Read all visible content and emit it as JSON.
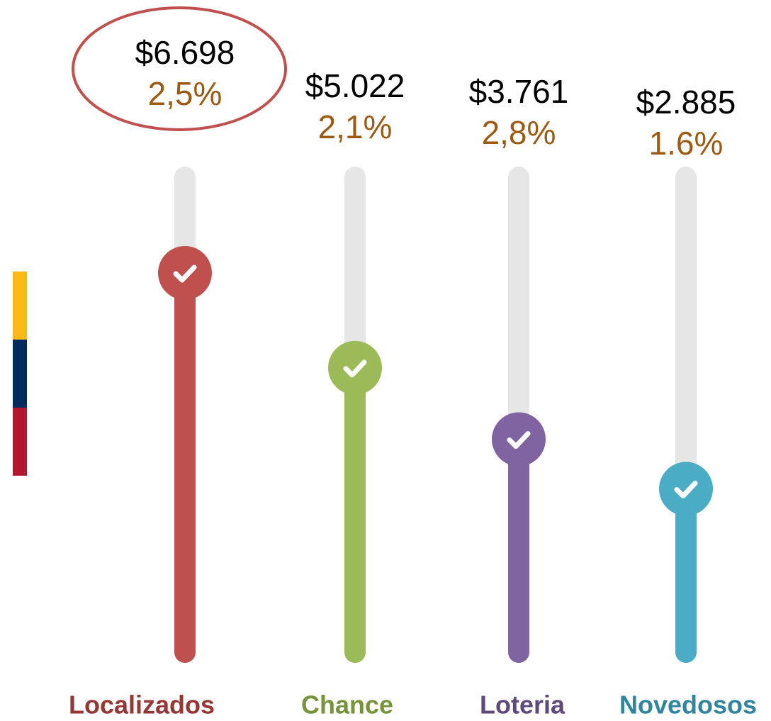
{
  "chart_data": {
    "type": "bar",
    "categories": [
      "Localizados",
      "Chance",
      "Loteria",
      "Novedosos"
    ],
    "values": [
      6698,
      5022,
      3761,
      2885
    ],
    "value_labels": [
      "$6.698",
      "$5.022",
      "$3.761",
      "$2.885"
    ],
    "percent_values": [
      2.5,
      2.1,
      2.8,
      1.6
    ],
    "percent_labels": [
      "2,5%",
      "2,1%",
      "2,8%",
      "1.6%"
    ],
    "colors": [
      "#c0504d",
      "#9bbb59",
      "#8064a2",
      "#4bacc6"
    ],
    "label_colors": [
      "#953735",
      "#77933c",
      "#5f497a",
      "#31859c"
    ],
    "percent_color": "#9c5a12"
  }
}
